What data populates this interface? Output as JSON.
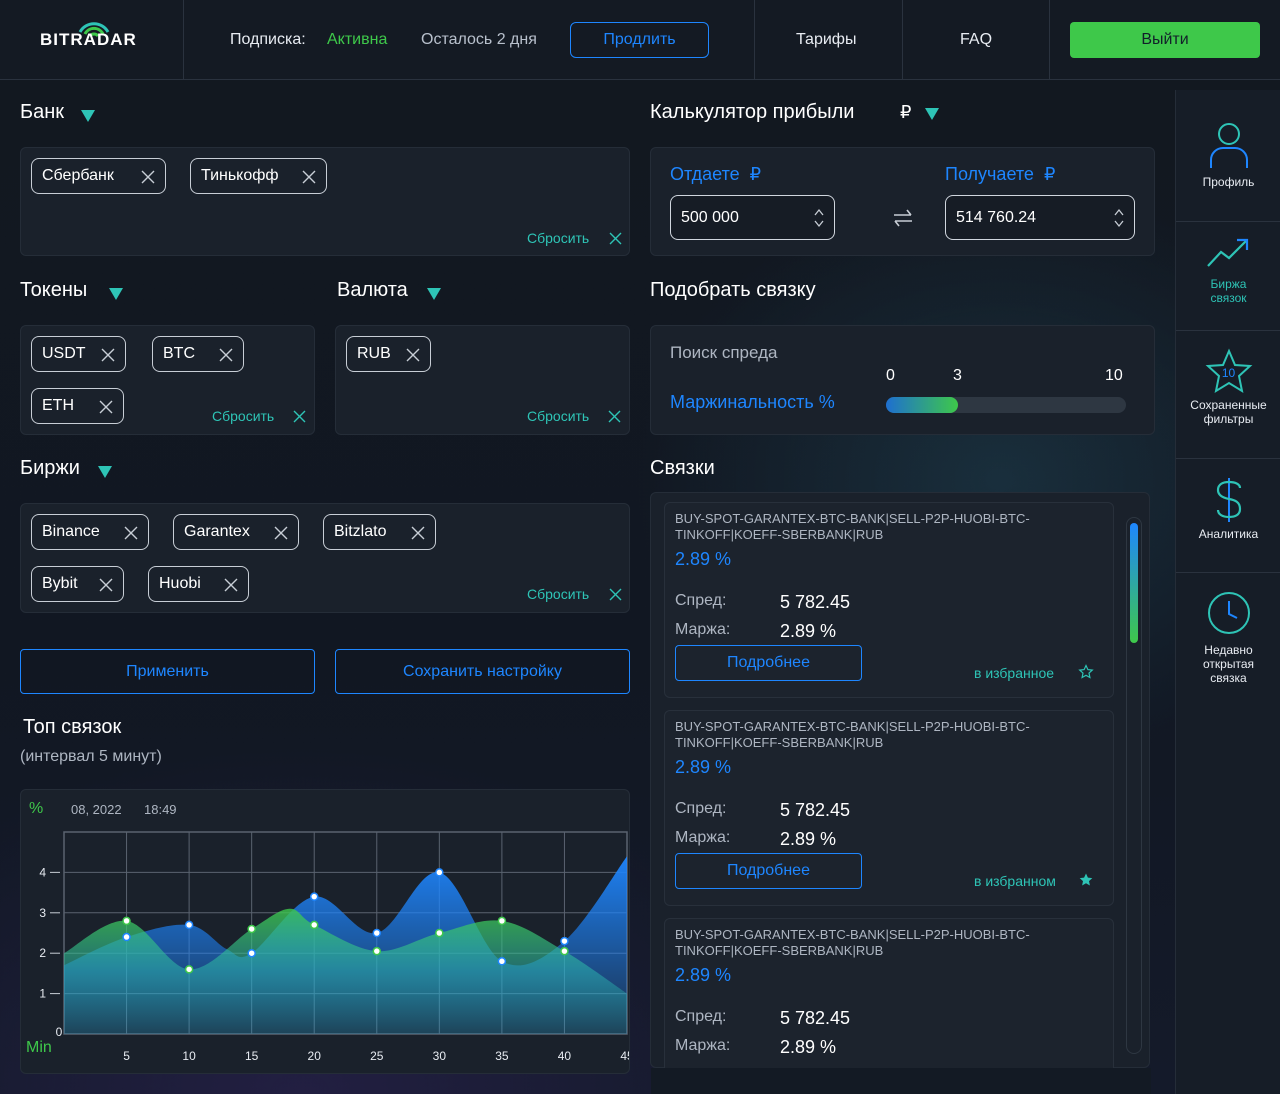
{
  "header": {
    "logo": "BITRADAR",
    "subscription_label": "Подписка:",
    "subscription_status": "Активна",
    "remaining": "Осталось 2 дня",
    "extend_button": "Продлить",
    "nav": [
      "Тарифы",
      "FAQ"
    ],
    "logout_button": "Выйти"
  },
  "bank": {
    "title": "Банк",
    "chips": [
      "Сбербанк",
      "Тинькофф"
    ],
    "reset": "Сбросить"
  },
  "tokens": {
    "title": "Токены",
    "chips": [
      "USDT",
      "BTC",
      "ETH"
    ],
    "reset": "Сбросить"
  },
  "currency": {
    "title": "Валюта",
    "chips": [
      "RUB"
    ],
    "reset": "Сбросить"
  },
  "exchanges": {
    "title": "Биржи",
    "chips": [
      "Binance",
      "Garantex",
      "Bitzlato",
      "Bybit",
      "Huobi"
    ],
    "reset": "Сбросить"
  },
  "actions": {
    "apply": "Применить",
    "save": "Сохранить настройку"
  },
  "top": {
    "title": "Топ связок",
    "subtitle": "(интервал 5 минут)"
  },
  "calculator": {
    "title": "Калькулятор прибыли",
    "currency_symbol": "₽",
    "give_label": "Отдаете",
    "give_currency": "₽",
    "give_value": "500 000",
    "get_label": "Получаете",
    "get_currency": "₽",
    "get_value": "514 760.24"
  },
  "matcher": {
    "title": "Подобрать связку",
    "search_label": "Поиск спреда",
    "margin_label": "Маржинальность %",
    "slider_min": "0",
    "slider_value": "3",
    "slider_max": "10",
    "slider_fraction": 0.3
  },
  "bundles": {
    "title": "Связки",
    "spread_key": "Спред:",
    "margin_key": "Маржа:",
    "details_button": "Подробнее",
    "items": [
      {
        "name": "BUY-SPOT-GARANTEX-BTC-BANK|SELL-P2P-HUOBI-BTC-TINKOFF|KOEFF-SBERBANK|RUB",
        "pct": "2.89 %",
        "spread": "5 782.45",
        "margin": "2.89 %",
        "fav": "в избранное",
        "favorited": false
      },
      {
        "name": "BUY-SPOT-GARANTEX-BTC-BANK|SELL-P2P-HUOBI-BTC-TINKOFF|KOEFF-SBERBANK|RUB",
        "pct": "2.89 %",
        "spread": "5 782.45",
        "margin": "2.89 %",
        "fav": "в избранном",
        "favorited": true
      },
      {
        "name": "BUY-SPOT-GARANTEX-BTC-BANK|SELL-P2P-HUOBI-BTC-TINKOFF|KOEFF-SBERBANK|RUB",
        "pct": "2.89 %",
        "spread": "5 782.45",
        "margin": "2.89 %",
        "fav": "",
        "favorited": false
      }
    ]
  },
  "sidebar": {
    "items": [
      {
        "label": "Профиль",
        "icon": "user-icon",
        "active": false
      },
      {
        "label": "Биржа связок",
        "icon": "trend-icon",
        "active": true
      },
      {
        "label": "Сохраненные фильтры",
        "icon": "star-icon",
        "badge": "10",
        "active": false
      },
      {
        "label": "Аналитика",
        "icon": "dollar-icon",
        "active": false
      },
      {
        "label": "Недавно открытая связка",
        "icon": "clock-icon",
        "active": false
      }
    ]
  },
  "colors": {
    "accent_blue": "#1e86ff",
    "accent_green": "#3ec84a",
    "accent_teal": "#2ec4b6",
    "background": "#121820",
    "panel": "#1a212b"
  },
  "chart_data": {
    "type": "area",
    "y_unit": "%",
    "x_unit": "Min",
    "date_label": "08, 2022",
    "time_label": "18:49",
    "x": [
      0,
      5,
      10,
      15,
      20,
      25,
      30,
      35,
      40,
      45
    ],
    "xticks": [
      "0",
      "5",
      "10",
      "15",
      "20",
      "25",
      "30",
      "35",
      "40",
      "45"
    ],
    "yticks": [
      "1",
      "2",
      "3",
      "4"
    ],
    "ylim": [
      0,
      5
    ],
    "xlim": [
      0,
      45
    ],
    "grid": true,
    "series": [
      {
        "color": "#1e86ff",
        "x": [
          0,
          5,
          10,
          13,
          15,
          20,
          25,
          30,
          35,
          40,
          45
        ],
        "values": [
          1.7,
          2.4,
          2.7,
          2.1,
          2.0,
          3.4,
          2.5,
          4.0,
          1.8,
          2.3,
          4.4
        ]
      },
      {
        "color": "#3ec84a",
        "x": [
          0,
          5,
          10,
          15,
          18,
          20,
          25,
          30,
          35,
          40,
          45
        ],
        "values": [
          2.0,
          2.8,
          1.6,
          2.6,
          3.1,
          2.7,
          2.05,
          2.5,
          2.8,
          2.05,
          1.0
        ]
      }
    ]
  }
}
